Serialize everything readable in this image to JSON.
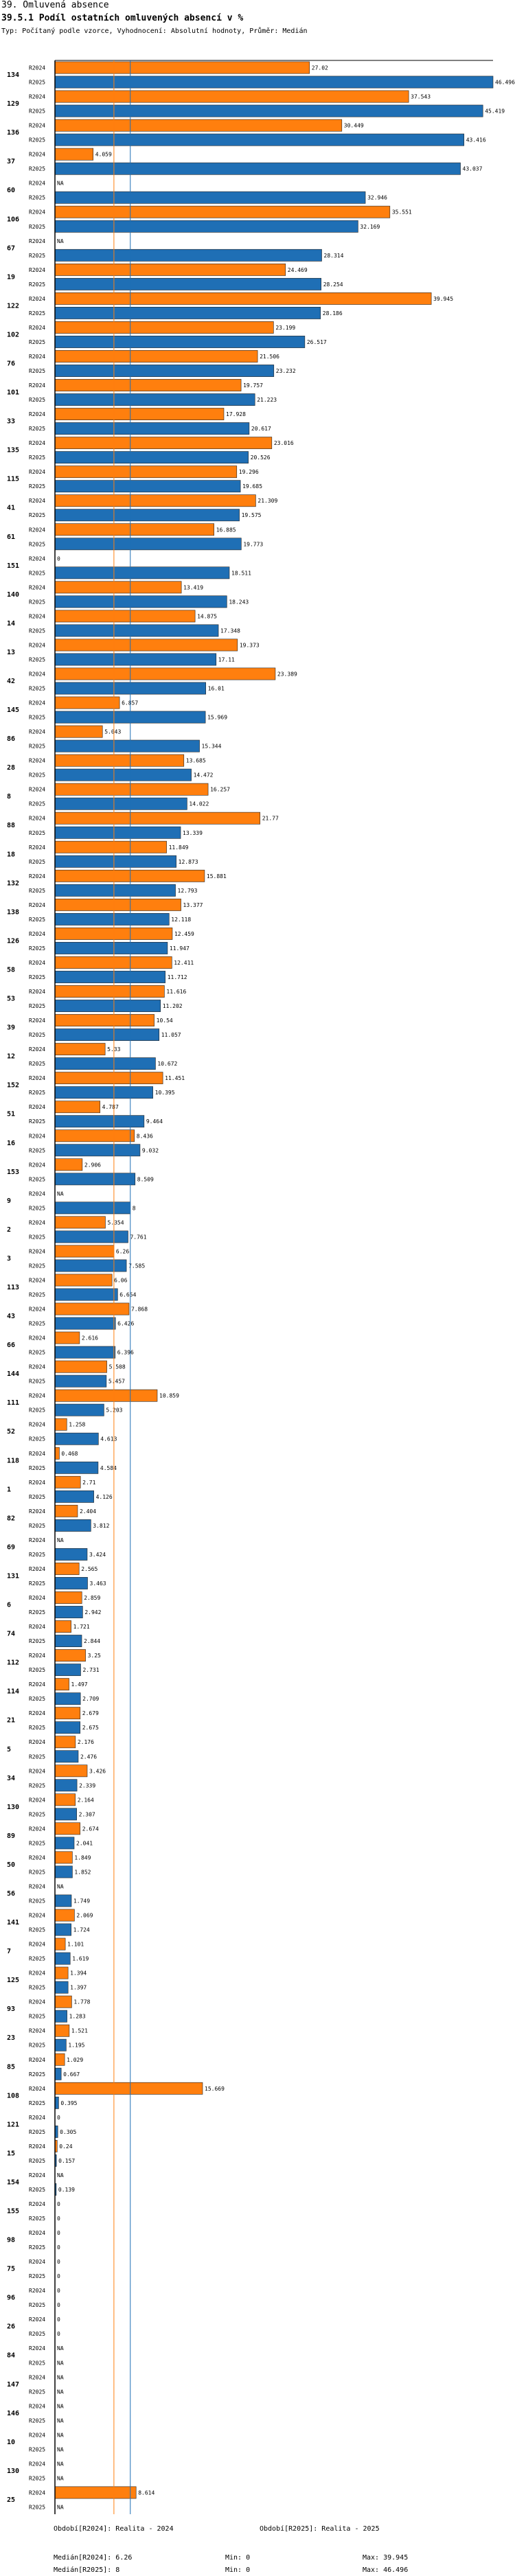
{
  "header": {
    "section_title": "39. Omluvená absence",
    "chart_title": "39.5.1 Podíl ostatních omluvených absencí v %",
    "subtitle": "Typ: Počítaný podle vzorce, Vyhodnocení: Absolutní hodnoty, Průměr: Medián"
  },
  "colors": {
    "r2024": "#ff7f0e",
    "r2025": "#1f6fb5",
    "median2024_line": "#ff7f0e",
    "median2025_line": "#1f6fb5"
  },
  "chart_data": {
    "type": "bar",
    "orientation": "horizontal",
    "title": "39.5.1 Podíl ostatních omluvených absencí v %",
    "xlim": [
      0,
      46.496
    ],
    "series_names": [
      "R2024",
      "R2025"
    ],
    "medians": {
      "R2024": 6.26,
      "R2025": 8
    },
    "groups": [
      {
        "id": "134",
        "R2024": 27.02,
        "R2025": 46.496
      },
      {
        "id": "129",
        "R2024": 37.543,
        "R2025": 45.419
      },
      {
        "id": "136",
        "R2024": 30.449,
        "R2025": 43.416
      },
      {
        "id": "37",
        "R2024": 4.059,
        "R2025": 43.037
      },
      {
        "id": "60",
        "R2024": "NA",
        "R2025": 32.946
      },
      {
        "id": "106",
        "R2024": 35.551,
        "R2025": 32.169
      },
      {
        "id": "67",
        "R2024": "NA",
        "R2025": 28.314
      },
      {
        "id": "19",
        "R2024": 24.469,
        "R2025": 28.254
      },
      {
        "id": "122",
        "R2024": 39.945,
        "R2025": 28.186
      },
      {
        "id": "102",
        "R2024": 23.199,
        "R2025": 26.517
      },
      {
        "id": "76",
        "R2024": 21.506,
        "R2025": 23.232
      },
      {
        "id": "101",
        "R2024": 19.757,
        "R2025": 21.223
      },
      {
        "id": "33",
        "R2024": 17.928,
        "R2025": 20.617
      },
      {
        "id": "135",
        "R2024": 23.016,
        "R2025": 20.526
      },
      {
        "id": "115",
        "R2024": 19.296,
        "R2025": 19.685
      },
      {
        "id": "41",
        "R2024": 21.309,
        "R2025": 19.575
      },
      {
        "id": "61",
        "R2024": 16.885,
        "R2025": 19.773
      },
      {
        "id": "151",
        "R2024": 0,
        "R2025": 18.511
      },
      {
        "id": "140",
        "R2024": 13.419,
        "R2025": 18.243
      },
      {
        "id": "14",
        "R2024": 14.875,
        "R2025": 17.348
      },
      {
        "id": "13",
        "R2024": 19.373,
        "R2025": 17.11
      },
      {
        "id": "42",
        "R2024": 23.389,
        "R2025": 16.01
      },
      {
        "id": "145",
        "R2024": 6.857,
        "R2025": 15.969
      },
      {
        "id": "86",
        "R2024": 5.043,
        "R2025": 15.344
      },
      {
        "id": "28",
        "R2024": 13.685,
        "R2025": 14.472
      },
      {
        "id": "8",
        "R2024": 16.257,
        "R2025": 14.022
      },
      {
        "id": "88",
        "R2024": 21.77,
        "R2025": 13.339
      },
      {
        "id": "18",
        "R2024": 11.849,
        "R2025": 12.873
      },
      {
        "id": "132",
        "R2024": 15.881,
        "R2025": 12.793
      },
      {
        "id": "138",
        "R2024": 13.377,
        "R2025": 12.118
      },
      {
        "id": "126",
        "R2024": 12.459,
        "R2025": 11.947
      },
      {
        "id": "58",
        "R2024": 12.411,
        "R2025": 11.712
      },
      {
        "id": "53",
        "R2024": 11.616,
        "R2025": 11.202
      },
      {
        "id": "39",
        "R2024": 10.54,
        "R2025": 11.057
      },
      {
        "id": "12",
        "R2024": 5.33,
        "R2025": 10.672
      },
      {
        "id": "152",
        "R2024": 11.451,
        "R2025": 10.395
      },
      {
        "id": "51",
        "R2024": 4.787,
        "R2025": 9.464
      },
      {
        "id": "16",
        "R2024": 8.436,
        "R2025": 9.032
      },
      {
        "id": "153",
        "R2024": 2.906,
        "R2025": 8.509
      },
      {
        "id": "9",
        "R2024": "NA",
        "R2025": 8
      },
      {
        "id": "2",
        "R2024": 5.354,
        "R2025": 7.761
      },
      {
        "id": "3",
        "R2024": 6.26,
        "R2025": 7.585
      },
      {
        "id": "113",
        "R2024": 6.06,
        "R2025": 6.654
      },
      {
        "id": "43",
        "R2024": 7.868,
        "R2025": 6.426
      },
      {
        "id": "66",
        "R2024": 2.616,
        "R2025": 6.396
      },
      {
        "id": "144",
        "R2024": 5.508,
        "R2025": 5.457
      },
      {
        "id": "111",
        "R2024": 10.859,
        "R2025": 5.203
      },
      {
        "id": "52",
        "R2024": 1.258,
        "R2025": 4.613
      },
      {
        "id": "118",
        "R2024": 0.468,
        "R2025": 4.584
      },
      {
        "id": "1",
        "R2024": 2.71,
        "R2025": 4.126
      },
      {
        "id": "82",
        "R2024": 2.404,
        "R2025": 3.812
      },
      {
        "id": "69",
        "R2024": "NA",
        "R2025": 3.424
      },
      {
        "id": "131",
        "R2024": 2.565,
        "R2025": 3.463
      },
      {
        "id": "6",
        "R2024": 2.859,
        "R2025": 2.942
      },
      {
        "id": "74",
        "R2024": 1.721,
        "R2025": 2.844
      },
      {
        "id": "112",
        "R2024": 3.25,
        "R2025": 2.731
      },
      {
        "id": "114",
        "R2024": 1.497,
        "R2025": 2.709
      },
      {
        "id": "21",
        "R2024": 2.679,
        "R2025": 2.675
      },
      {
        "id": "5",
        "R2024": 2.176,
        "R2025": 2.476
      },
      {
        "id": "34",
        "R2024": 3.426,
        "R2025": 2.339
      },
      {
        "id": "130",
        "R2024": 2.164,
        "R2025": 2.307
      },
      {
        "id": "89",
        "R2024": 2.674,
        "R2025": 2.041
      },
      {
        "id": "50",
        "R2024": 1.849,
        "R2025": 1.852
      },
      {
        "id": "56",
        "R2024": "NA",
        "R2025": 1.749
      },
      {
        "id": "141",
        "R2024": 2.069,
        "R2025": 1.724
      },
      {
        "id": "7",
        "R2024": 1.101,
        "R2025": 1.619
      },
      {
        "id": "125",
        "R2024": 1.394,
        "R2025": 1.397
      },
      {
        "id": "93",
        "R2024": 1.778,
        "R2025": 1.283
      },
      {
        "id": "23",
        "R2024": 1.521,
        "R2025": 1.195
      },
      {
        "id": "85",
        "R2024": 1.029,
        "R2025": 0.667
      },
      {
        "id": "108",
        "R2024": 15.669,
        "R2025": 0.395
      },
      {
        "id": "121",
        "R2024": 0,
        "R2025": 0.305
      },
      {
        "id": "15",
        "R2024": 0.24,
        "R2025": 0.157
      },
      {
        "id": "154",
        "R2024": "NA",
        "R2025": 0.139
      },
      {
        "id": "155",
        "R2024": 0,
        "R2025": 0
      },
      {
        "id": "98",
        "R2024": 0,
        "R2025": 0
      },
      {
        "id": "75",
        "R2024": 0,
        "R2025": 0
      },
      {
        "id": "96",
        "R2024": 0,
        "R2025": 0
      },
      {
        "id": "26",
        "R2024": 0,
        "R2025": 0
      },
      {
        "id": "84",
        "R2024": "NA",
        "R2025": "NA"
      },
      {
        "id": "147",
        "R2024": "NA",
        "R2025": "NA"
      },
      {
        "id": "146",
        "R2024": "NA",
        "R2025": "NA"
      },
      {
        "id": "10",
        "R2024": "NA",
        "R2025": "NA"
      },
      {
        "id": "130",
        "R2024": "NA",
        "R2025": "NA"
      },
      {
        "id": "25",
        "R2024": 8.614,
        "R2025": "NA"
      }
    ]
  },
  "footer": {
    "period1": "Období[R2024]: Realita - 2024",
    "period2": "Období[R2025]: Realita - 2025",
    "median1": "Medián[R2024]: 6.26",
    "median2": "Medián[R2025]: 8",
    "min1": "Min: 0",
    "min2": "Min: 0",
    "max1": "Max: 39.945",
    "max2": "Max: 46.496"
  }
}
